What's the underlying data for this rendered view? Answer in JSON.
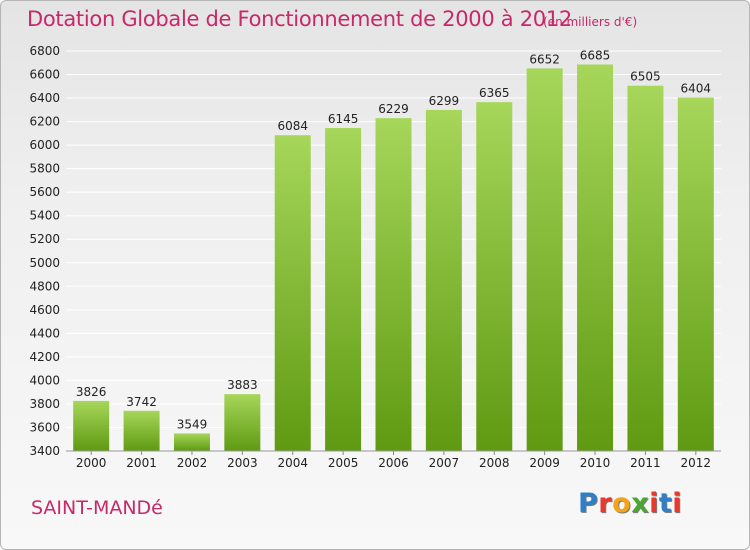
{
  "title": "Dotation Globale de Fonctionnement de 2000 à 2012",
  "unit_note": "(en milliers d'€)",
  "place_name": "SAINT-MANDé",
  "logo": {
    "text": "Proxiti",
    "letter_colors": [
      "#2f7fc8",
      "#e8392c",
      "#f2a41c",
      "#4aa832",
      "#e8392c",
      "#2f7fc8",
      "#e8392c"
    ]
  },
  "colors": {
    "title": "#c8286a",
    "bar_top": "#a6d65a",
    "bar_bottom": "#5f9a12",
    "grid": "#ffffff",
    "axis_text": "#222222"
  },
  "chart_data": {
    "type": "bar",
    "categories": [
      "2000",
      "2001",
      "2002",
      "2003",
      "2004",
      "2005",
      "2006",
      "2007",
      "2008",
      "2009",
      "2010",
      "2011",
      "2012"
    ],
    "values": [
      3826,
      3742,
      3549,
      3883,
      6084,
      6145,
      6229,
      6299,
      6365,
      6652,
      6685,
      6505,
      6404
    ],
    "ylim": [
      3400,
      6800
    ],
    "yticks": [
      3400,
      3600,
      3800,
      4000,
      4200,
      4400,
      4600,
      4800,
      5000,
      5200,
      5400,
      5600,
      5800,
      6000,
      6200,
      6400,
      6600,
      6800
    ],
    "grid": true,
    "data_labels": true
  }
}
